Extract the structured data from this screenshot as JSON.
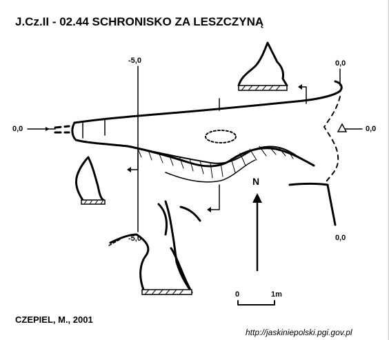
{
  "title": "J.Cz.II - 02.44  SCHRONISKO ZA LESZCZYNĄ",
  "depth_labels": {
    "top_minus5": "-5,0",
    "left_zero": "0,0",
    "right_top_zero": "0,0",
    "right_mid_zero": "0,0",
    "right_bottom_zero": "0,0",
    "bottom_minus5": "-5,0"
  },
  "north_label": "N",
  "scale": {
    "start": "0",
    "end": "1m"
  },
  "author": "CZEPIEL, M., 2001",
  "source_url": "http://jaskiniepolski.pgi.gov.pl"
}
